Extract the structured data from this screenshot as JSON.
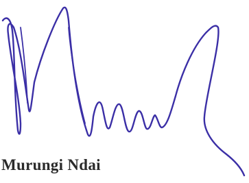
{
  "signature": {
    "name": "Murungi Ndai"
  }
}
